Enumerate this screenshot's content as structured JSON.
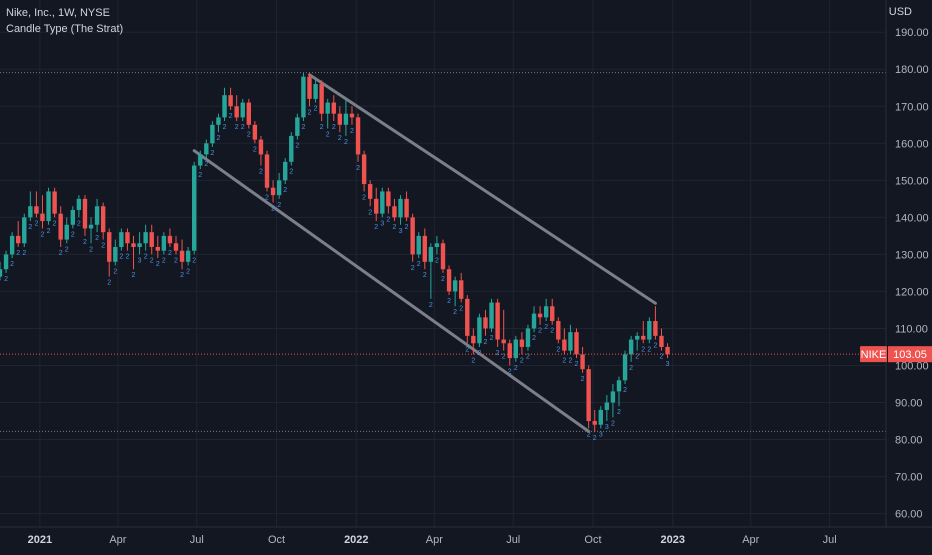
{
  "header": {
    "title": "Nike, Inc., 1W, NYSE",
    "indicator": "Candle Type (The Strat)",
    "currency": "USD"
  },
  "colors": {
    "background": "#131722",
    "grid": "#1f2430",
    "up": "#26a69a",
    "down": "#ef5350",
    "channel": "#7b7f8a",
    "strat_label": "#4c8fe0",
    "price_tag": "#ef5350"
  },
  "chart_data": {
    "type": "candlestick",
    "symbol": "NIKE",
    "last_price": "103.05",
    "y_ticks": [
      190,
      180,
      170,
      160,
      150,
      140,
      130,
      120,
      110,
      100,
      90,
      80,
      70,
      60
    ],
    "y_tick_labels": [
      "190.00",
      "180.00",
      "170.00",
      "160.00",
      "150.00",
      "140.00",
      "130.00",
      "120.00",
      "110.00",
      "100.00",
      "90.00",
      "80.00",
      "70.00",
      "60.00"
    ],
    "ylim": [
      58,
      196
    ],
    "x_labels": [
      {
        "label": "2021",
        "date": "2021-01-01",
        "year": true
      },
      {
        "label": "Apr",
        "date": "2021-04-01",
        "year": false
      },
      {
        "label": "Jul",
        "date": "2021-07-01",
        "year": false
      },
      {
        "label": "Oct",
        "date": "2021-10-01",
        "year": false
      },
      {
        "label": "2022",
        "date": "2022-01-01",
        "year": true
      },
      {
        "label": "Apr",
        "date": "2022-04-01",
        "year": false
      },
      {
        "label": "Jul",
        "date": "2022-07-01",
        "year": false
      },
      {
        "label": "Oct",
        "date": "2022-10-01",
        "year": false
      },
      {
        "label": "2023",
        "date": "2023-01-01",
        "year": true
      },
      {
        "label": "Apr",
        "date": "2023-04-01",
        "year": false
      },
      {
        "label": "Jul",
        "date": "2023-07-01",
        "year": false
      }
    ],
    "xlim": [
      "2020-11-16",
      "2023-09-04"
    ],
    "horizontal_lines": [
      179.1,
      82.2
    ],
    "channel_lines": [
      {
        "from": {
          "date": "2021-11-08",
          "price": 178.5
        },
        "to": {
          "date": "2022-12-12",
          "price": 116.8
        }
      },
      {
        "from": {
          "date": "2021-06-28",
          "price": 158.0
        },
        "to": {
          "date": "2022-09-26",
          "price": 82.2
        }
      }
    ],
    "candles": [
      {
        "date": "2020-11-16",
        "o": 124,
        "h": 128,
        "l": 123,
        "c": 126,
        "label": ""
      },
      {
        "date": "2020-11-23",
        "o": 126,
        "h": 131,
        "l": 125,
        "c": 130,
        "label": "2"
      },
      {
        "date": "2020-11-30",
        "o": 130,
        "h": 136,
        "l": 129,
        "c": 135,
        "label": "2"
      },
      {
        "date": "2020-12-07",
        "o": 135,
        "h": 139,
        "l": 132,
        "c": 133,
        "label": "2"
      },
      {
        "date": "2020-12-14",
        "o": 133,
        "h": 141,
        "l": 132,
        "c": 140,
        "label": "2"
      },
      {
        "date": "2020-12-21",
        "o": 140,
        "h": 147,
        "l": 139,
        "c": 143,
        "label": "2"
      },
      {
        "date": "2020-12-28",
        "o": 143,
        "h": 147,
        "l": 140,
        "c": 141,
        "label": "2"
      },
      {
        "date": "2021-01-04",
        "o": 141,
        "h": 146,
        "l": 137,
        "c": 139,
        "label": "2"
      },
      {
        "date": "2021-01-11",
        "o": 139,
        "h": 148,
        "l": 138,
        "c": 147,
        "label": "2"
      },
      {
        "date": "2021-01-18",
        "o": 147,
        "h": 148,
        "l": 140,
        "c": 141,
        "label": "2"
      },
      {
        "date": "2021-01-25",
        "o": 141,
        "h": 143,
        "l": 132,
        "c": 134,
        "label": "2"
      },
      {
        "date": "2021-02-01",
        "o": 134,
        "h": 140,
        "l": 133,
        "c": 138,
        "label": "2"
      },
      {
        "date": "2021-02-08",
        "o": 138,
        "h": 143,
        "l": 137,
        "c": 142,
        "label": "2"
      },
      {
        "date": "2021-02-15",
        "o": 142,
        "h": 146,
        "l": 140,
        "c": 145,
        "label": "2"
      },
      {
        "date": "2021-02-22",
        "o": 145,
        "h": 146,
        "l": 135,
        "c": 137,
        "label": "2"
      },
      {
        "date": "2021-03-01",
        "o": 137,
        "h": 140,
        "l": 133,
        "c": 138,
        "label": "2"
      },
      {
        "date": "2021-03-08",
        "o": 138,
        "h": 145,
        "l": 136,
        "c": 143,
        "label": "2"
      },
      {
        "date": "2021-03-15",
        "o": 143,
        "h": 144,
        "l": 134,
        "c": 136,
        "label": "2"
      },
      {
        "date": "2021-03-22",
        "o": 136,
        "h": 137,
        "l": 124,
        "c": 128,
        "label": "2"
      },
      {
        "date": "2021-03-29",
        "o": 128,
        "h": 134,
        "l": 127,
        "c": 132,
        "label": "2"
      },
      {
        "date": "2021-04-05",
        "o": 132,
        "h": 137,
        "l": 131,
        "c": 136,
        "label": "2"
      },
      {
        "date": "2021-04-12",
        "o": 136,
        "h": 137,
        "l": 131,
        "c": 133,
        "label": "2"
      },
      {
        "date": "2021-04-19",
        "o": 133,
        "h": 135,
        "l": 126,
        "c": 132,
        "label": "2"
      },
      {
        "date": "2021-04-26",
        "o": 132,
        "h": 136,
        "l": 130,
        "c": 133,
        "label": "3"
      },
      {
        "date": "2021-05-03",
        "o": 133,
        "h": 138,
        "l": 131,
        "c": 136,
        "label": "2"
      },
      {
        "date": "2021-05-10",
        "o": 136,
        "h": 138,
        "l": 130,
        "c": 132,
        "label": "2"
      },
      {
        "date": "2021-05-17",
        "o": 132,
        "h": 135,
        "l": 129,
        "c": 131,
        "label": "2"
      },
      {
        "date": "2021-05-24",
        "o": 131,
        "h": 136,
        "l": 130,
        "c": 135,
        "label": "2"
      },
      {
        "date": "2021-05-31",
        "o": 135,
        "h": 137,
        "l": 132,
        "c": 133,
        "label": "2"
      },
      {
        "date": "2021-06-07",
        "o": 133,
        "h": 135,
        "l": 130,
        "c": 131,
        "label": "2"
      },
      {
        "date": "2021-06-14",
        "o": 131,
        "h": 134,
        "l": 126,
        "c": 128,
        "label": "2"
      },
      {
        "date": "2021-06-21",
        "o": 128,
        "h": 132,
        "l": 127,
        "c": 131,
        "label": "2"
      },
      {
        "date": "2021-06-28",
        "o": 131,
        "h": 155,
        "l": 130,
        "c": 154,
        "label": "2"
      },
      {
        "date": "2021-07-05",
        "o": 154,
        "h": 158,
        "l": 153,
        "c": 157,
        "label": "2"
      },
      {
        "date": "2021-07-12",
        "o": 157,
        "h": 161,
        "l": 156,
        "c": 160,
        "label": "2"
      },
      {
        "date": "2021-07-19",
        "o": 160,
        "h": 166,
        "l": 159,
        "c": 165,
        "label": "2"
      },
      {
        "date": "2021-07-26",
        "o": 165,
        "h": 168,
        "l": 163,
        "c": 167,
        "label": "2"
      },
      {
        "date": "2021-08-02",
        "o": 167,
        "h": 175,
        "l": 166,
        "c": 173,
        "label": "2"
      },
      {
        "date": "2021-08-09",
        "o": 173,
        "h": 175,
        "l": 169,
        "c": 170,
        "label": "2"
      },
      {
        "date": "2021-08-16",
        "o": 170,
        "h": 173,
        "l": 166,
        "c": 167,
        "label": "2"
      },
      {
        "date": "2021-08-23",
        "o": 167,
        "h": 172,
        "l": 166,
        "c": 171,
        "label": "2"
      },
      {
        "date": "2021-08-30",
        "o": 171,
        "h": 172,
        "l": 164,
        "c": 165,
        "label": "2"
      },
      {
        "date": "2021-09-06",
        "o": 165,
        "h": 166,
        "l": 160,
        "c": 161,
        "label": "2"
      },
      {
        "date": "2021-09-13",
        "o": 161,
        "h": 162,
        "l": 154,
        "c": 157,
        "label": "2"
      },
      {
        "date": "2021-09-20",
        "o": 157,
        "h": 158,
        "l": 147,
        "c": 148,
        "label": "2"
      },
      {
        "date": "2021-09-27",
        "o": 148,
        "h": 150,
        "l": 144,
        "c": 146,
        "label": "2"
      },
      {
        "date": "2021-10-04",
        "o": 146,
        "h": 152,
        "l": 145,
        "c": 150,
        "label": "2"
      },
      {
        "date": "2021-10-11",
        "o": 150,
        "h": 156,
        "l": 149,
        "c": 155,
        "label": "2"
      },
      {
        "date": "2021-10-18",
        "o": 155,
        "h": 163,
        "l": 154,
        "c": 162,
        "label": "2"
      },
      {
        "date": "2021-10-25",
        "o": 162,
        "h": 168,
        "l": 161,
        "c": 167,
        "label": "2"
      },
      {
        "date": "2021-11-01",
        "o": 167,
        "h": 179,
        "l": 166,
        "c": 178,
        "label": "2"
      },
      {
        "date": "2021-11-08",
        "o": 178,
        "h": 179,
        "l": 170,
        "c": 172,
        "label": "2"
      },
      {
        "date": "2021-11-15",
        "o": 172,
        "h": 177,
        "l": 171,
        "c": 176,
        "label": "2"
      },
      {
        "date": "2021-11-22",
        "o": 176,
        "h": 177,
        "l": 166,
        "c": 168,
        "label": "2"
      },
      {
        "date": "2021-11-29",
        "o": 168,
        "h": 172,
        "l": 164,
        "c": 171,
        "label": "2"
      },
      {
        "date": "2021-12-06",
        "o": 171,
        "h": 173,
        "l": 166,
        "c": 168,
        "label": "2"
      },
      {
        "date": "2021-12-13",
        "o": 168,
        "h": 170,
        "l": 163,
        "c": 165,
        "label": "2"
      },
      {
        "date": "2021-12-20",
        "o": 165,
        "h": 172,
        "l": 162,
        "c": 168,
        "label": "2"
      },
      {
        "date": "2021-12-27",
        "o": 168,
        "h": 170,
        "l": 165,
        "c": 167,
        "label": "2"
      },
      {
        "date": "2022-01-03",
        "o": 167,
        "h": 168,
        "l": 155,
        "c": 157,
        "label": "2"
      },
      {
        "date": "2022-01-10",
        "o": 157,
        "h": 158,
        "l": 147,
        "c": 149,
        "label": "2"
      },
      {
        "date": "2022-01-17",
        "o": 149,
        "h": 150,
        "l": 143,
        "c": 145,
        "label": "2"
      },
      {
        "date": "2022-01-24",
        "o": 145,
        "h": 148,
        "l": 139,
        "c": 141,
        "label": "2"
      },
      {
        "date": "2022-01-31",
        "o": 141,
        "h": 148,
        "l": 140,
        "c": 147,
        "label": "3"
      },
      {
        "date": "2022-02-07",
        "o": 147,
        "h": 148,
        "l": 141,
        "c": 143,
        "label": "2"
      },
      {
        "date": "2022-02-14",
        "o": 143,
        "h": 145,
        "l": 139,
        "c": 140,
        "label": "2"
      },
      {
        "date": "2022-02-21",
        "o": 140,
        "h": 146,
        "l": 138,
        "c": 145,
        "label": "3"
      },
      {
        "date": "2022-02-28",
        "o": 145,
        "h": 147,
        "l": 139,
        "c": 140,
        "label": "2"
      },
      {
        "date": "2022-03-07",
        "o": 140,
        "h": 141,
        "l": 128,
        "c": 130,
        "label": "2"
      },
      {
        "date": "2022-03-14",
        "o": 130,
        "h": 136,
        "l": 129,
        "c": 135,
        "label": "2"
      },
      {
        "date": "2022-03-21",
        "o": 135,
        "h": 137,
        "l": 126,
        "c": 128,
        "label": "2"
      },
      {
        "date": "2022-03-28",
        "o": 128,
        "h": 133,
        "l": 118,
        "c": 132,
        "label": "2"
      },
      {
        "date": "2022-04-04",
        "o": 132,
        "h": 135,
        "l": 130,
        "c": 133,
        "label": "2"
      },
      {
        "date": "2022-04-11",
        "o": 133,
        "h": 134,
        "l": 125,
        "c": 126,
        "label": "2"
      },
      {
        "date": "2022-04-18",
        "o": 126,
        "h": 127,
        "l": 119,
        "c": 120,
        "label": "2"
      },
      {
        "date": "2022-04-25",
        "o": 120,
        "h": 124,
        "l": 116,
        "c": 123,
        "label": "2"
      },
      {
        "date": "2022-05-02",
        "o": 123,
        "h": 125,
        "l": 117,
        "c": 118,
        "label": "2"
      },
      {
        "date": "2022-05-09",
        "o": 118,
        "h": 119,
        "l": 106,
        "c": 108,
        "label": "2"
      },
      {
        "date": "2022-05-16",
        "o": 108,
        "h": 110,
        "l": 103,
        "c": 106,
        "label": "2"
      },
      {
        "date": "2022-05-23",
        "o": 106,
        "h": 114,
        "l": 105,
        "c": 113,
        "label": "2"
      },
      {
        "date": "2022-05-30",
        "o": 113,
        "h": 115,
        "l": 108,
        "c": 110,
        "label": "2"
      },
      {
        "date": "2022-06-06",
        "o": 110,
        "h": 118,
        "l": 109,
        "c": 117,
        "label": "2"
      },
      {
        "date": "2022-06-13",
        "o": 117,
        "h": 118,
        "l": 105,
        "c": 107,
        "label": "2"
      },
      {
        "date": "2022-06-20",
        "o": 107,
        "h": 115,
        "l": 104,
        "c": 106,
        "label": "2"
      },
      {
        "date": "2022-06-27",
        "o": 106,
        "h": 107,
        "l": 100,
        "c": 102,
        "label": "2"
      },
      {
        "date": "2022-07-04",
        "o": 102,
        "h": 108,
        "l": 101,
        "c": 107,
        "label": "2"
      },
      {
        "date": "2022-07-11",
        "o": 107,
        "h": 109,
        "l": 103,
        "c": 105,
        "label": "2"
      },
      {
        "date": "2022-07-18",
        "o": 105,
        "h": 111,
        "l": 104,
        "c": 110,
        "label": "2"
      },
      {
        "date": "2022-07-25",
        "o": 110,
        "h": 116,
        "l": 109,
        "c": 114,
        "label": "2"
      },
      {
        "date": "2022-08-01",
        "o": 114,
        "h": 116,
        "l": 111,
        "c": 113,
        "label": "2"
      },
      {
        "date": "2022-08-08",
        "o": 113,
        "h": 118,
        "l": 112,
        "c": 116,
        "label": "2"
      },
      {
        "date": "2022-08-15",
        "o": 116,
        "h": 118,
        "l": 111,
        "c": 112,
        "label": "2"
      },
      {
        "date": "2022-08-22",
        "o": 112,
        "h": 113,
        "l": 106,
        "c": 107,
        "label": "2"
      },
      {
        "date": "2022-08-29",
        "o": 107,
        "h": 110,
        "l": 103,
        "c": 104,
        "label": "2"
      },
      {
        "date": "2022-09-05",
        "o": 104,
        "h": 111,
        "l": 103,
        "c": 109,
        "label": "2"
      },
      {
        "date": "2022-09-12",
        "o": 109,
        "h": 110,
        "l": 102,
        "c": 103,
        "label": "2"
      },
      {
        "date": "2022-09-19",
        "o": 103,
        "h": 105,
        "l": 98,
        "c": 99,
        "label": "2"
      },
      {
        "date": "2022-09-26",
        "o": 99,
        "h": 100,
        "l": 83,
        "c": 85,
        "label": "2"
      },
      {
        "date": "2022-10-03",
        "o": 85,
        "h": 88,
        "l": 82,
        "c": 84,
        "label": "2"
      },
      {
        "date": "2022-10-10",
        "o": 84,
        "h": 89,
        "l": 83,
        "c": 88,
        "label": "3"
      },
      {
        "date": "2022-10-17",
        "o": 88,
        "h": 92,
        "l": 85,
        "c": 90,
        "label": "3"
      },
      {
        "date": "2022-10-24",
        "o": 90,
        "h": 95,
        "l": 86,
        "c": 93,
        "label": "2"
      },
      {
        "date": "2022-10-31",
        "o": 93,
        "h": 97,
        "l": 89,
        "c": 96,
        "label": "2"
      },
      {
        "date": "2022-11-07",
        "o": 96,
        "h": 104,
        "l": 95,
        "c": 103,
        "label": "2"
      },
      {
        "date": "2022-11-14",
        "o": 103,
        "h": 108,
        "l": 101,
        "c": 107,
        "label": "2"
      },
      {
        "date": "2022-11-21",
        "o": 107,
        "h": 109,
        "l": 104,
        "c": 108,
        "label": "2"
      },
      {
        "date": "2022-11-28",
        "o": 108,
        "h": 112,
        "l": 106,
        "c": 107,
        "label": "2"
      },
      {
        "date": "2022-12-05",
        "o": 107,
        "h": 113,
        "l": 106,
        "c": 112,
        "label": "2"
      },
      {
        "date": "2022-12-12",
        "o": 112,
        "h": 116,
        "l": 107,
        "c": 108,
        "label": "2"
      },
      {
        "date": "2022-12-19",
        "o": 108,
        "h": 110,
        "l": 104,
        "c": 105,
        "label": "2"
      },
      {
        "date": "2022-12-26",
        "o": 105,
        "h": 106,
        "l": 102,
        "c": 103.05,
        "label": "3"
      }
    ]
  }
}
